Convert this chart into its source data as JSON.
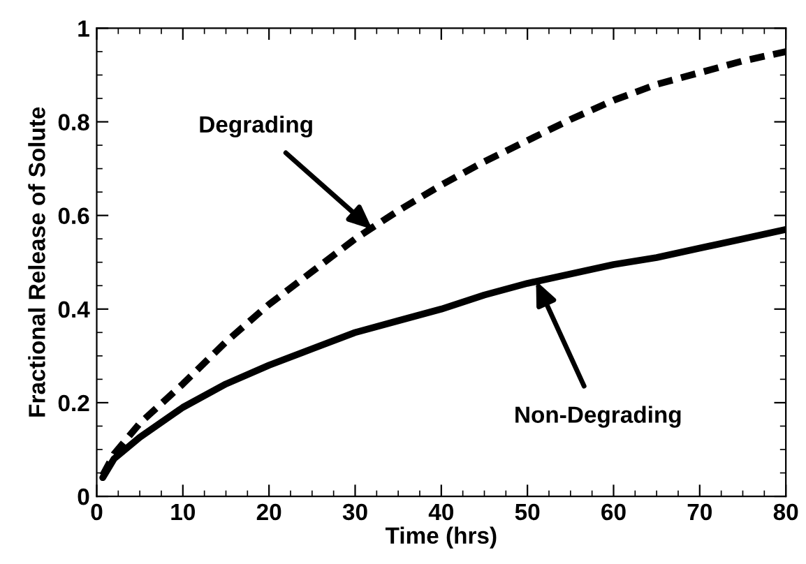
{
  "chart_data": {
    "type": "line",
    "xlabel": "Time (hrs)",
    "ylabel": "Fractional Release of Solute",
    "xlim": [
      0,
      80
    ],
    "ylim": [
      0,
      1
    ],
    "xticks": [
      0,
      10,
      20,
      30,
      40,
      50,
      60,
      70,
      80
    ],
    "yticks": [
      0,
      0.2,
      0.4,
      0.6,
      0.8,
      1
    ],
    "grid": false,
    "legend": false,
    "marker": "none",
    "series": [
      {
        "color": "#000000",
        "line_style": "dashed",
        "x": [
          0.7,
          2,
          5,
          10,
          15,
          20,
          25,
          30,
          35,
          40,
          45,
          50,
          55,
          60,
          65,
          70,
          75,
          80
        ],
        "values": [
          0.045,
          0.09,
          0.156,
          0.24,
          0.33,
          0.41,
          0.48,
          0.55,
          0.61,
          0.665,
          0.715,
          0.76,
          0.805,
          0.846,
          0.88,
          0.905,
          0.93,
          0.95
        ]
      },
      {
        "color": "#000000",
        "line_style": "solid",
        "x": [
          0.7,
          2,
          5,
          10,
          15,
          20,
          25,
          30,
          35,
          40,
          45,
          50,
          55,
          60,
          65,
          70,
          75,
          80
        ],
        "values": [
          0.04,
          0.08,
          0.126,
          0.19,
          0.24,
          0.28,
          0.315,
          0.35,
          0.375,
          0.4,
          0.43,
          0.455,
          0.475,
          0.495,
          0.51,
          0.53,
          0.55,
          0.57
        ]
      }
    ],
    "annotations": [
      {
        "text": "Degrading",
        "x": 32,
        "y": 0.57
      },
      {
        "text": "Non-Degrading",
        "x": 51,
        "y": 0.46
      }
    ]
  }
}
